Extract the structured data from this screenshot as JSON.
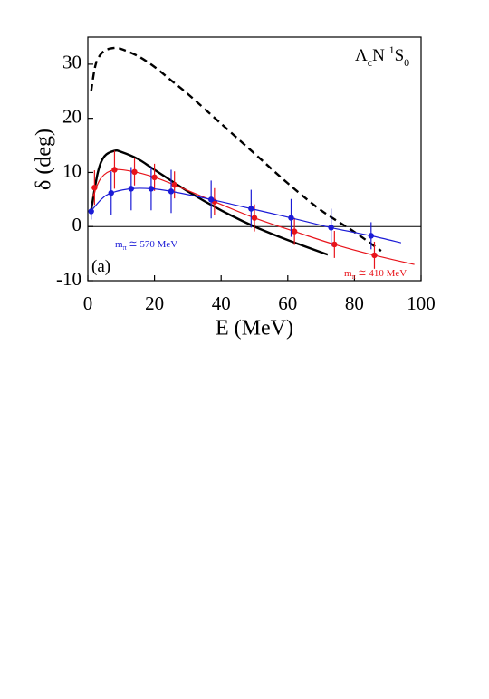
{
  "chart_data": {
    "type": "line",
    "xlabel": "E (MeV)",
    "ylabel": "δ (deg)",
    "xlim": [
      0,
      100
    ],
    "ylim": [
      -10,
      35
    ],
    "xticks": [
      0,
      20,
      40,
      60,
      80,
      100
    ],
    "yticks": [
      -10,
      0,
      10,
      20,
      30
    ],
    "zero_line": true,
    "series": [
      {
        "color": "#000000",
        "style": "dashed",
        "x": [
          1,
          2,
          3,
          5,
          8,
          10,
          15,
          20,
          25,
          30,
          40,
          50,
          60,
          70,
          80,
          88
        ],
        "values": [
          25,
          29,
          31,
          32.5,
          33,
          32.8,
          31.5,
          29.5,
          27,
          24.5,
          19,
          13.5,
          8,
          3,
          -1,
          -4.5
        ]
      },
      {
        "color": "#000000",
        "style": "solid",
        "x": [
          1,
          3,
          5,
          8,
          10,
          15,
          20,
          30,
          40,
          50,
          60,
          72
        ],
        "values": [
          3,
          10,
          13,
          14,
          13.8,
          12.5,
          10.5,
          6.5,
          3,
          0,
          -2.5,
          -5.2
        ]
      },
      {
        "color": "#e8141b",
        "style": "solid",
        "x": [
          1.5,
          4,
          8,
          14,
          20,
          26,
          38,
          50,
          62,
          74,
          86,
          98
        ],
        "values": [
          5.5,
          9,
          10.5,
          10.1,
          9.1,
          7.7,
          4.6,
          1.6,
          -0.9,
          -3.3,
          -5.3,
          -7
        ]
      },
      {
        "color": "#e8141b",
        "style": "markers",
        "x": [
          2,
          8,
          14,
          20,
          26,
          38,
          50,
          62,
          74,
          86
        ],
        "values": [
          7.2,
          10.5,
          10.1,
          9.1,
          7.7,
          4.6,
          1.6,
          -0.9,
          -3.3,
          -5.3
        ],
        "errors": [
          3.2,
          3.5,
          2.5,
          2.5,
          2.5,
          2.5,
          2.5,
          2.5,
          2.5,
          2.5
        ]
      },
      {
        "color": "#1b1bd6",
        "style": "solid",
        "x": [
          0.5,
          4,
          7,
          13,
          19,
          25,
          37,
          49,
          61,
          73,
          85,
          94
        ],
        "values": [
          2.5,
          5,
          6.2,
          7,
          7,
          6.5,
          5,
          3.3,
          1.6,
          -0.2,
          -1.7,
          -3
        ]
      },
      {
        "color": "#1b1bd6",
        "style": "markers",
        "x": [
          1,
          7,
          13,
          19,
          25,
          37,
          49,
          61,
          73,
          85
        ],
        "values": [
          2.8,
          6.2,
          7,
          7,
          6.5,
          5,
          3.3,
          1.6,
          -0.2,
          -1.7
        ],
        "errors": [
          1.5,
          4,
          4,
          4,
          4,
          3.5,
          3.5,
          3.5,
          3.5,
          2.5
        ]
      }
    ],
    "annotations": [
      {
        "parts": [
          "Λ",
          "c",
          "N ",
          "1",
          "S",
          "0"
        ],
        "color": "#000000"
      },
      {
        "parts": [
          "m",
          "π",
          " ≅ 570 MeV"
        ],
        "color": "#1b1bd6"
      },
      {
        "parts": [
          "m",
          "π",
          " ≅ 410 MeV"
        ],
        "color": "#e8141b"
      },
      {
        "parts": [
          "(a)"
        ],
        "color": "#000000"
      }
    ]
  }
}
